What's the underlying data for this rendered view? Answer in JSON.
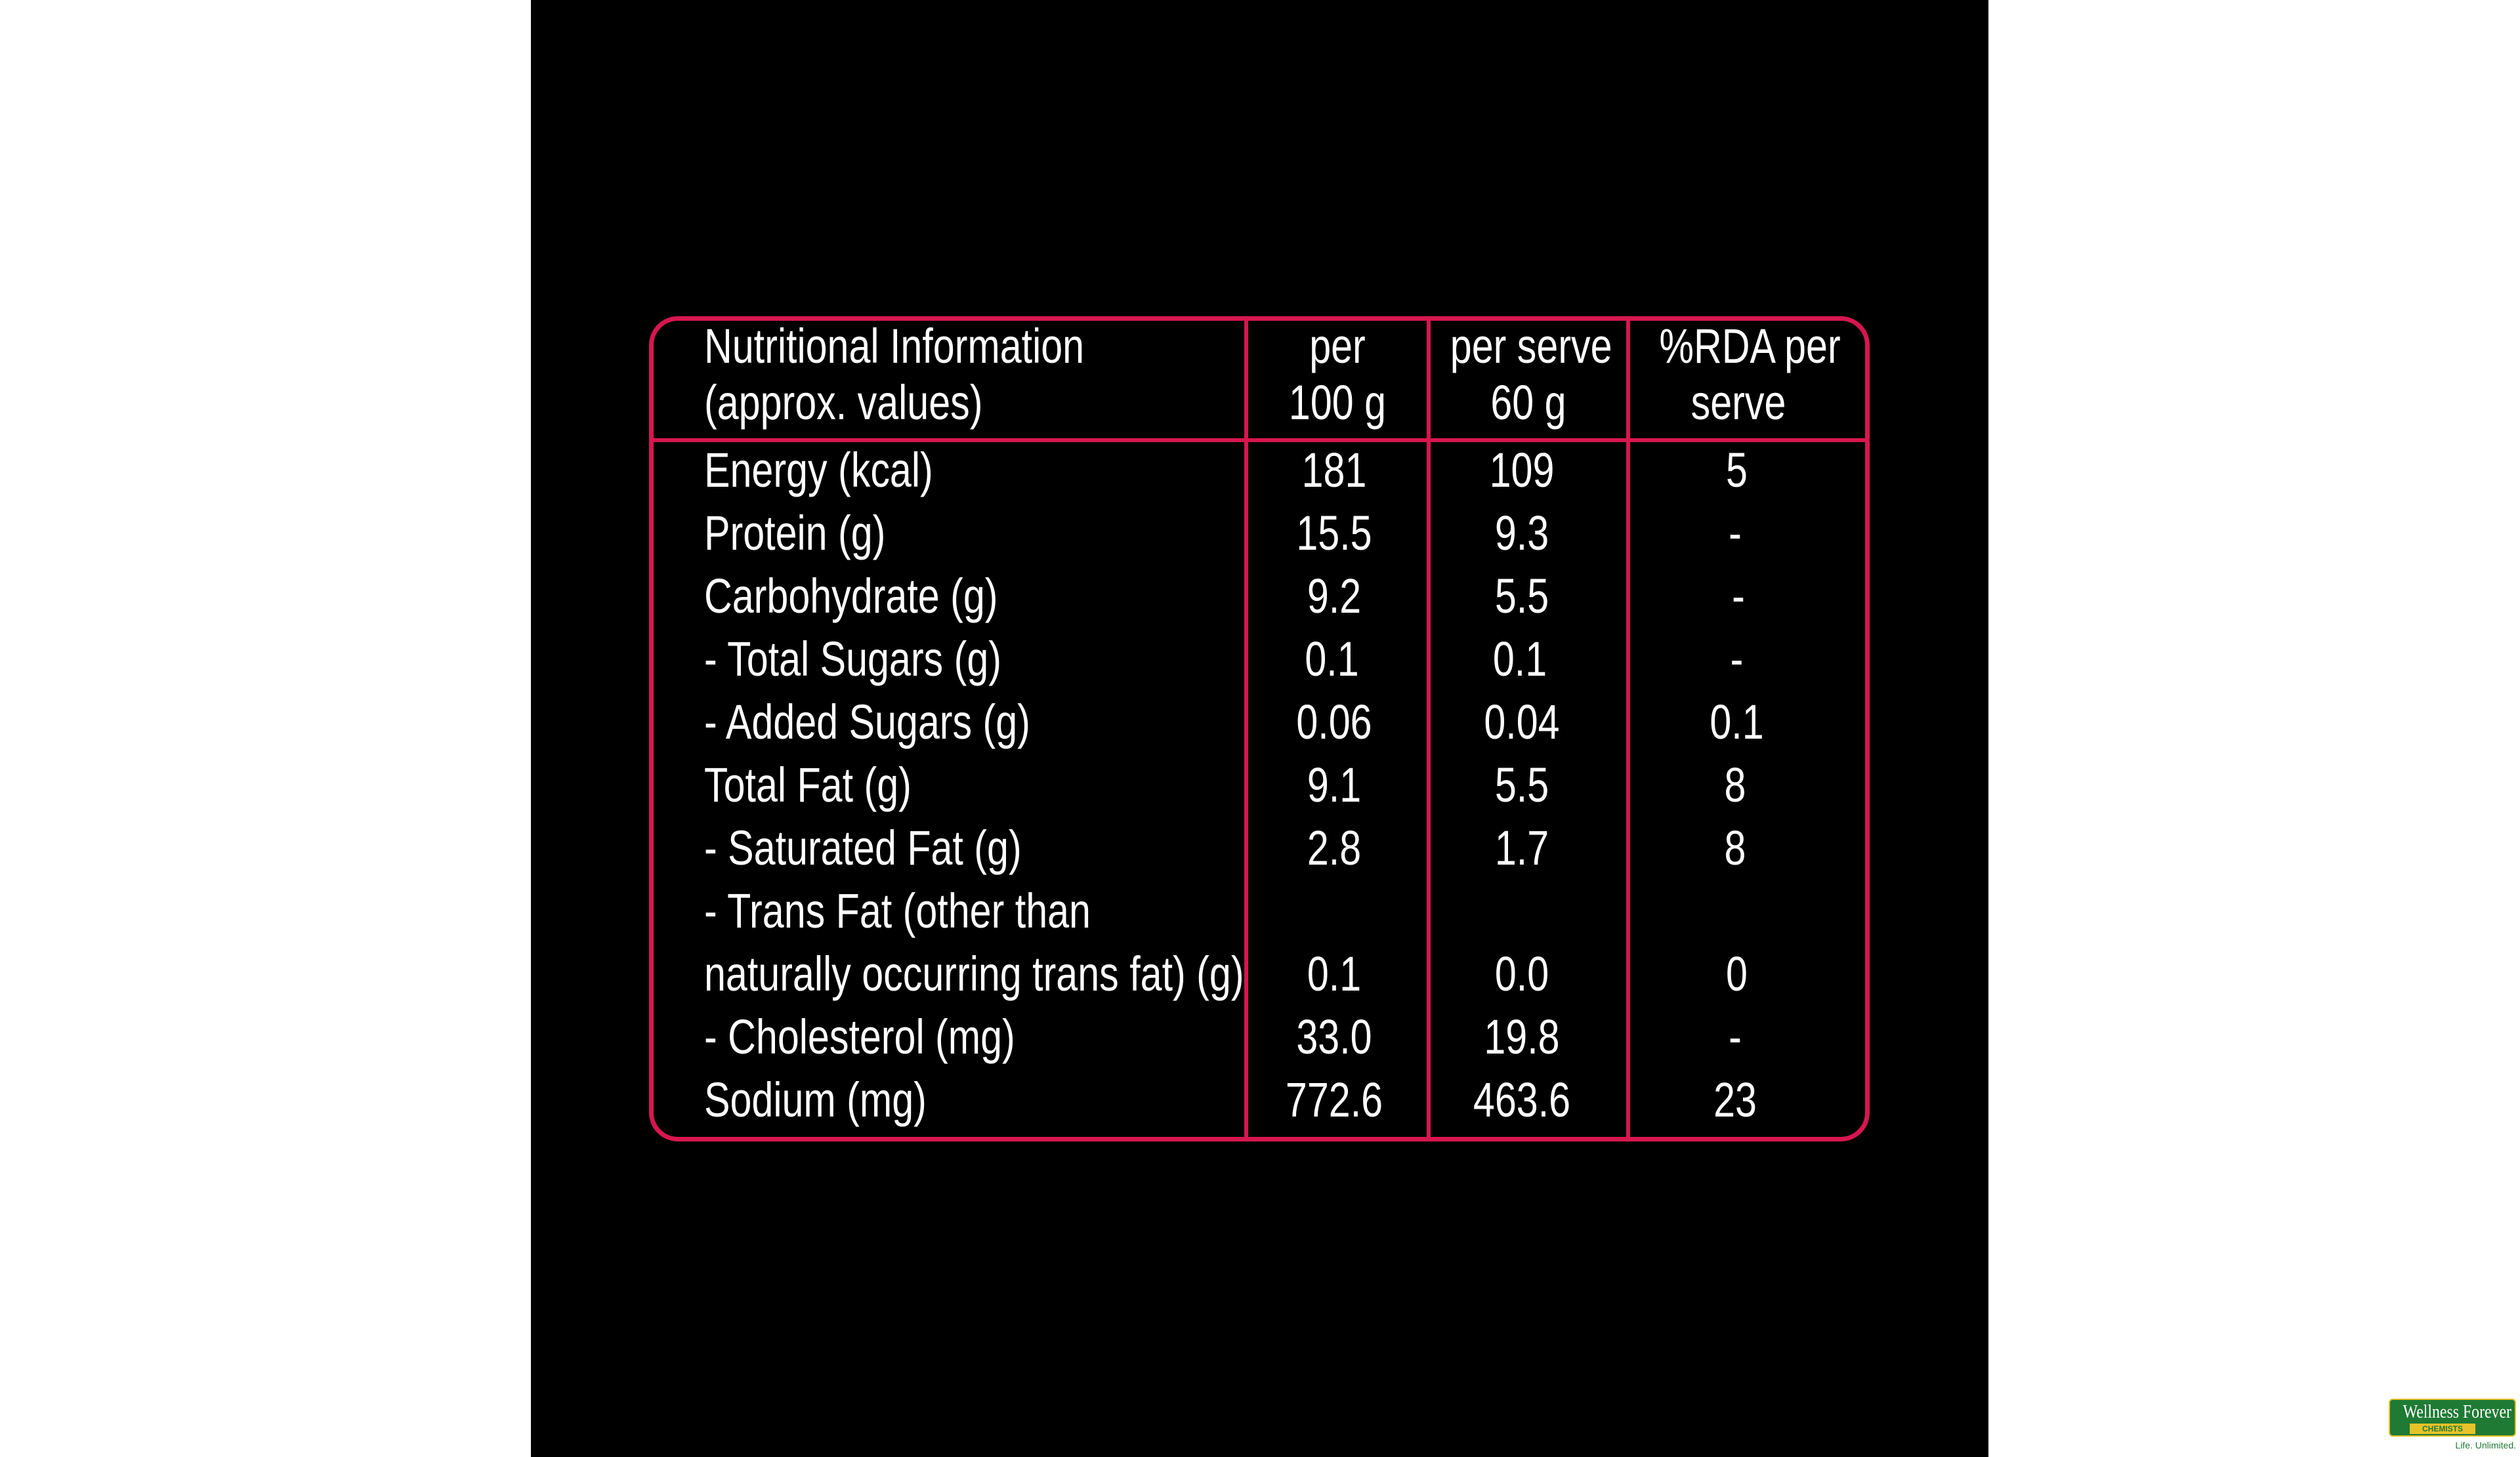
{
  "header": {
    "label_line1": "Nutritional Information",
    "label_line2": "(approx. values)",
    "col1_line1": "per",
    "col1_line2": "100 g",
    "col2_line1": "per serve",
    "col2_line2": "60 g",
    "col3_line1": "%RDA per",
    "col3_line2": "serve"
  },
  "rows": [
    {
      "label": "Energy (kcal)",
      "per100g": "181",
      "perServe": "109",
      "rda": "5"
    },
    {
      "label": "Protein (g)",
      "per100g": "15.5",
      "perServe": "9.3",
      "rda": "-"
    },
    {
      "label": "Carbohydrate (g)",
      "per100g": "9.2",
      "perServe": "5.5",
      "rda": "-"
    },
    {
      "label": "- Total Sugars (g)",
      "per100g": "0.1",
      "perServe": "0.1",
      "rda": "-"
    },
    {
      "label": "- Added Sugars (g)",
      "per100g": "0.06",
      "perServe": "0.04",
      "rda": "0.1"
    },
    {
      "label": "Total Fat (g)",
      "per100g": "9.1",
      "perServe": "5.5",
      "rda": "8"
    },
    {
      "label": " - Saturated Fat (g)",
      "per100g": "2.8",
      "perServe": "1.7",
      "rda": "8"
    },
    {
      "label": "- Trans Fat (other than",
      "per100g": "",
      "perServe": "",
      "rda": ""
    },
    {
      "label": "naturally occurring trans fat) (g)",
      "per100g": "0.1",
      "perServe": "0.0",
      "rda": "0"
    },
    {
      "label": "- Cholesterol (mg)",
      "per100g": "33.0",
      "perServe": "19.8",
      "rda": "-"
    },
    {
      "label": "Sodium (mg)",
      "per100g": "772.6",
      "perServe": "463.6",
      "rda": "23"
    }
  ],
  "logo": {
    "name": "Wellness Forever",
    "sub": "CHEMISTS",
    "tagline": "Life. Unlimited."
  },
  "colors": {
    "border": "#d6174f",
    "background": "#000000",
    "text": "#ffffff"
  }
}
